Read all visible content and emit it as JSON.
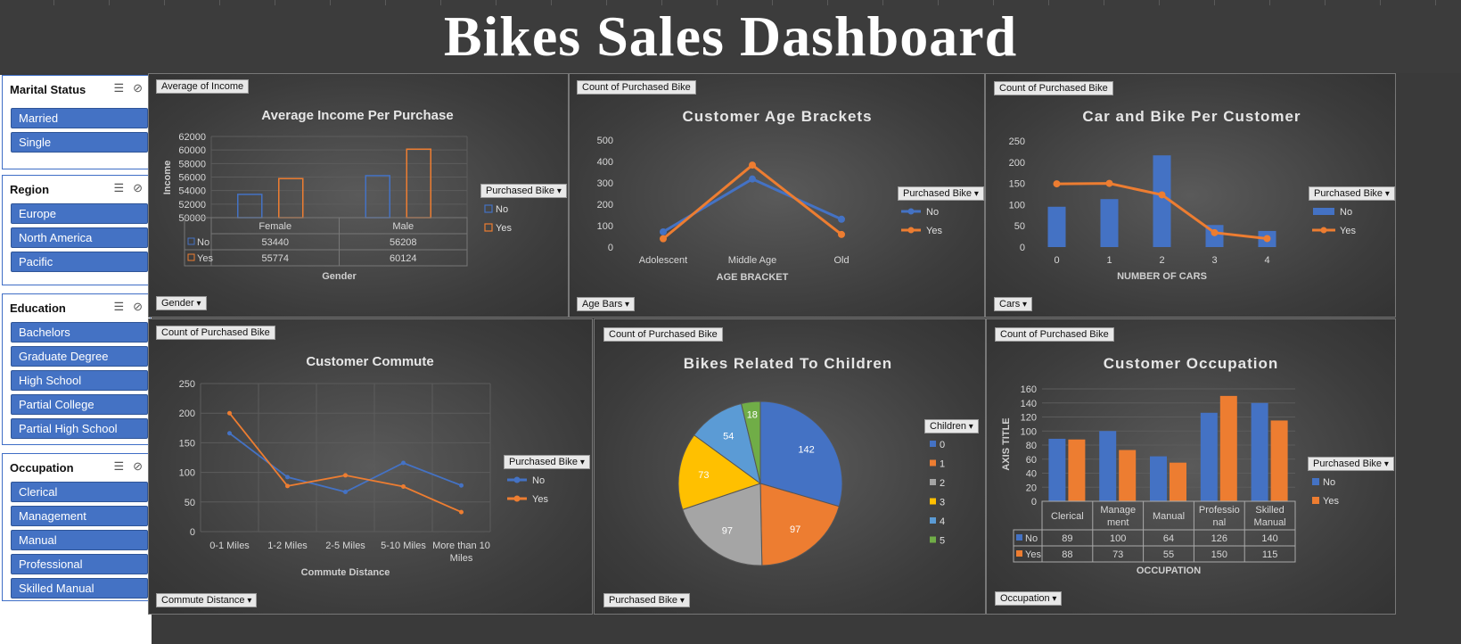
{
  "title": "Bikes Sales Dashboard",
  "colors": {
    "no": "#4472c4",
    "yes": "#ed7d31",
    "c2": "#a5a5a5",
    "c3": "#ffc000",
    "c4": "#5b9bd5",
    "c5": "#70ad47",
    "slicer_btn": "#4472c4"
  },
  "slicers": [
    {
      "title": "Marital Status",
      "items": [
        "Married",
        "Single"
      ]
    },
    {
      "title": "Region",
      "items": [
        "Europe",
        "North America",
        "Pacific"
      ]
    },
    {
      "title": "Education",
      "items": [
        "Bachelors",
        "Graduate Degree",
        "High School",
        "Partial College",
        "Partial High School"
      ]
    },
    {
      "title": "Occupation",
      "items": [
        "Clerical",
        "Management",
        "Manual",
        "Professional",
        "Skilled Manual"
      ]
    }
  ],
  "chart_data": [
    {
      "type": "bar",
      "title": "Average Income Per Purchase",
      "field_button": "Average of Income",
      "axis_button": "Gender",
      "legend_title": "Purchased Bike",
      "xlabel": "Gender",
      "ylabel": "Income",
      "ylim": [
        50000,
        62000
      ],
      "yticks": [
        "50000",
        "52000",
        "54000",
        "56000",
        "58000",
        "60000",
        "62000"
      ],
      "categories": [
        "Female",
        "Male"
      ],
      "series": [
        {
          "name": "No",
          "values": [
            53440,
            56208
          ]
        },
        {
          "name": "Yes",
          "values": [
            55774,
            60124
          ]
        }
      ],
      "table": [
        [
          "No",
          "53440",
          "56208"
        ],
        [
          "Yes",
          "55774",
          "60124"
        ]
      ]
    },
    {
      "type": "line",
      "title": "Customer Age Brackets",
      "field_button": "Count of Purchased Bike",
      "axis_button": "Age Bars",
      "legend_title": "Purchased Bike",
      "xlabel": "AGE BRACKET",
      "ylabel": "",
      "ylim": [
        0,
        500
      ],
      "yticks": [
        "0",
        "100",
        "200",
        "300",
        "400",
        "500"
      ],
      "categories": [
        "Adolescent",
        "Middle Age",
        "Old"
      ],
      "series": [
        {
          "name": "No",
          "values": [
            71,
            318,
            130
          ]
        },
        {
          "name": "Yes",
          "values": [
            39,
            383,
            59
          ]
        }
      ]
    },
    {
      "type": "bar",
      "title": "Car and Bike Per Customer",
      "field_button": "Count of Purchased Bike",
      "axis_button": "Cars",
      "legend_title": "Purchased Bike",
      "xlabel": "NUMBER OF CARS",
      "ylabel": "",
      "ylim": [
        0,
        250
      ],
      "yticks": [
        "0",
        "50",
        "100",
        "150",
        "200",
        "250"
      ],
      "categories": [
        "0",
        "1",
        "2",
        "3",
        "4"
      ],
      "series": [
        {
          "name": "No",
          "values": [
            95,
            113,
            216,
            52,
            38
          ]
        },
        {
          "name": "Yes",
          "values": [
            149,
            150,
            123,
            34,
            20
          ]
        }
      ]
    },
    {
      "type": "line",
      "title": "Customer Commute",
      "field_button": "Count of Purchased Bike",
      "axis_button": "Commute Distance",
      "legend_title": "Purchased Bike",
      "xlabel": "Commute Distance",
      "ylabel": "",
      "ylim": [
        0,
        250
      ],
      "yticks": [
        "0",
        "50",
        "100",
        "150",
        "200",
        "250"
      ],
      "categories": [
        "0-1 Miles",
        "1-2 Miles",
        "2-5 Miles",
        "5-10 Miles",
        "More than 10 Miles"
      ],
      "series": [
        {
          "name": "No",
          "values": [
            166,
            92,
            67,
            116,
            78
          ]
        },
        {
          "name": "Yes",
          "values": [
            200,
            77,
            95,
            76,
            33
          ]
        }
      ]
    },
    {
      "type": "pie",
      "title": "Bikes Related To Children",
      "field_button": "Count of Purchased Bike",
      "axis_button": "Purchased Bike",
      "legend_title": "Children",
      "categories": [
        "0",
        "1",
        "2",
        "3",
        "4",
        "5"
      ],
      "values": [
        142,
        97,
        97,
        73,
        54,
        18
      ]
    },
    {
      "type": "bar",
      "title": "Customer Occupation",
      "field_button": "Count of Purchased Bike",
      "axis_button": "Occupation",
      "legend_title": "Purchased Bike",
      "xlabel": "OCCUPATION",
      "ylabel": "AXIS TITLE",
      "ylim": [
        0,
        160
      ],
      "yticks": [
        "0",
        "20",
        "40",
        "60",
        "80",
        "100",
        "120",
        "140",
        "160"
      ],
      "categories": [
        "Clerical",
        "Manage ment",
        "Manual",
        "Professio nal",
        "Skilled Manual"
      ],
      "series": [
        {
          "name": "No",
          "values": [
            89,
            100,
            64,
            126,
            140
          ]
        },
        {
          "name": "Yes",
          "values": [
            88,
            73,
            55,
            150,
            115
          ]
        }
      ],
      "table": [
        [
          "No",
          "89",
          "100",
          "64",
          "126",
          "140"
        ],
        [
          "Yes",
          "88",
          "73",
          "55",
          "150",
          "115"
        ]
      ]
    }
  ]
}
